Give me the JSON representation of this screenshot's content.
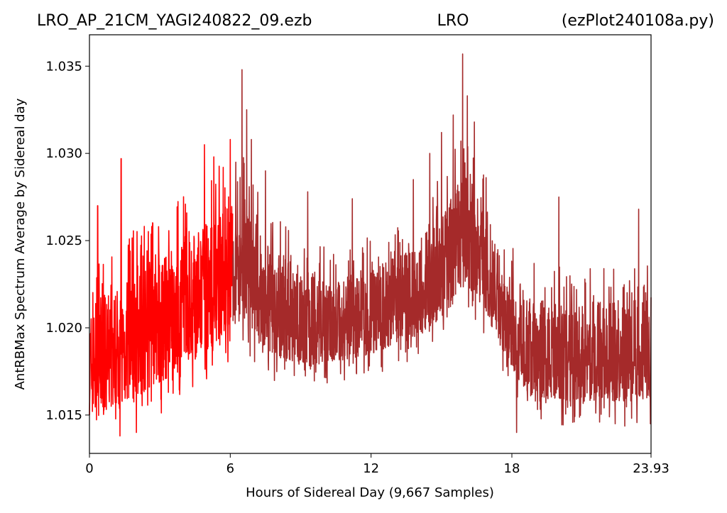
{
  "header": {
    "file": "LRO_AP_21CM_YAGI240822_09.ezb",
    "site": "LRO",
    "script": "(ezPlot240108a.py)"
  },
  "chart_data": {
    "type": "line",
    "xlabel": "Hours of Sidereal Day  (9,667 Samples)",
    "ylabel": "AntRBMax Spectrum Average by Sidereal day",
    "xlim": [
      0,
      23.93
    ],
    "ylim": [
      1.0128,
      1.0368
    ],
    "x_ticks": [
      0,
      6,
      12,
      18,
      23.93
    ],
    "x_tick_labels": [
      "0",
      "6",
      "12",
      "18",
      "23.93"
    ],
    "y_ticks": [
      1.015,
      1.02,
      1.025,
      1.03,
      1.035
    ],
    "y_tick_labels": [
      "1.015",
      "1.020",
      "1.025",
      "1.030",
      "1.035"
    ],
    "grid": false,
    "colors": {
      "segment_a": "#ff0000",
      "segment_b": "#a52a2a"
    },
    "series": [
      {
        "color": "#ff0000",
        "x": [
          0,
          0.5,
          1.0,
          1.5,
          2.0,
          2.5,
          3.0,
          3.5,
          4.0,
          4.5,
          5.0,
          5.5,
          6.1
        ],
        "low": [
          1.015,
          1.0152,
          1.0155,
          1.0158,
          1.016,
          1.0165,
          1.0168,
          1.0172,
          1.0177,
          1.0182,
          1.0187,
          1.0193,
          1.02
        ],
        "high": [
          1.021,
          1.0218,
          1.0222,
          1.0228,
          1.0232,
          1.0236,
          1.024,
          1.0245,
          1.025,
          1.0255,
          1.026,
          1.0268,
          1.0275
        ],
        "spikes": [
          [
            0.35,
            1.027
          ],
          [
            1.35,
            1.0297
          ],
          [
            1.3,
            1.0138
          ],
          [
            2.0,
            1.014
          ],
          [
            4.9,
            1.0305
          ],
          [
            5.3,
            1.0298
          ],
          [
            5.7,
            1.0292
          ],
          [
            6.0,
            1.0308
          ]
        ]
      },
      {
        "color": "#a52a2a",
        "x": [
          6.1,
          6.5,
          7.0,
          8.0,
          9.0,
          10.0,
          11.0,
          12.0,
          13.0,
          14.0,
          14.5,
          15.0,
          15.5,
          16.0,
          16.5,
          17.0,
          17.5,
          18.0,
          18.5,
          19.0,
          20.0,
          21.0,
          22.0,
          23.0,
          23.93
        ],
        "low": [
          1.02,
          1.0205,
          1.0195,
          1.0183,
          1.018,
          1.018,
          1.0182,
          1.0185,
          1.019,
          1.0195,
          1.02,
          1.0205,
          1.0212,
          1.0225,
          1.0218,
          1.0205,
          1.019,
          1.0178,
          1.0165,
          1.016,
          1.0158,
          1.0158,
          1.0158,
          1.0158,
          1.016
        ],
        "high": [
          1.0275,
          1.0278,
          1.026,
          1.0245,
          1.0235,
          1.023,
          1.023,
          1.0235,
          1.024,
          1.0248,
          1.0258,
          1.0268,
          1.0278,
          1.029,
          1.0282,
          1.0262,
          1.0245,
          1.023,
          1.0222,
          1.0218,
          1.0215,
          1.0215,
          1.0215,
          1.0218,
          1.022
        ],
        "spikes": [
          [
            6.5,
            1.0348
          ],
          [
            6.7,
            1.0325
          ],
          [
            6.9,
            1.0308
          ],
          [
            7.5,
            1.029
          ],
          [
            9.3,
            1.0278
          ],
          [
            11.2,
            1.0274
          ],
          [
            13.8,
            1.0285
          ],
          [
            14.5,
            1.03
          ],
          [
            15.0,
            1.0312
          ],
          [
            15.5,
            1.0322
          ],
          [
            15.9,
            1.0357
          ],
          [
            16.1,
            1.0333
          ],
          [
            16.4,
            1.0318
          ],
          [
            18.2,
            1.014
          ],
          [
            19.0,
            1.0158
          ],
          [
            20.0,
            1.0275
          ],
          [
            23.4,
            1.0268
          ],
          [
            23.9,
            1.0145
          ]
        ]
      }
    ]
  }
}
